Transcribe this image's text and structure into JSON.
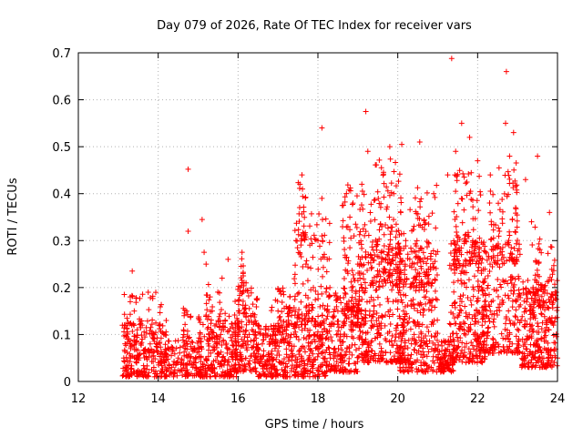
{
  "chart_data": {
    "type": "scatter",
    "title": "Day 079 of 2026, Rate Of TEC Index for receiver vars",
    "xlabel": "GPS time / hours",
    "ylabel": "ROTI / TECUs",
    "xlim": [
      12,
      24
    ],
    "ylim": [
      0,
      0.7
    ],
    "xticks": [
      12,
      14,
      16,
      18,
      20,
      22,
      24
    ],
    "xtick_labels": [
      "12",
      "14",
      "16",
      "18",
      "20",
      "22",
      "24"
    ],
    "yticks": [
      0,
      0.1,
      0.2,
      0.3,
      0.4,
      0.5,
      0.6,
      0.7
    ],
    "ytick_labels": [
      "0",
      "0.1",
      "0.2",
      "0.3",
      "0.4",
      "0.5",
      "0.6",
      "0.7"
    ],
    "grid": true,
    "marker": "plus",
    "color": "#ff0000",
    "points": [
      [
        13.2,
        0.03
      ],
      [
        13.3,
        0.17
      ],
      [
        13.35,
        0.235
      ],
      [
        13.4,
        0.15
      ],
      [
        13.5,
        0.05
      ],
      [
        13.6,
        0.12
      ],
      [
        13.75,
        0.19
      ],
      [
        13.8,
        0.08
      ],
      [
        14.0,
        0.04
      ],
      [
        14.2,
        0.13
      ],
      [
        14.5,
        0.05
      ],
      [
        14.65,
        0.14
      ],
      [
        14.75,
        0.452
      ],
      [
        14.75,
        0.32
      ],
      [
        14.9,
        0.04
      ],
      [
        15.1,
        0.345
      ],
      [
        15.15,
        0.275
      ],
      [
        15.2,
        0.25
      ],
      [
        15.3,
        0.18
      ],
      [
        15.5,
        0.06
      ],
      [
        15.6,
        0.22
      ],
      [
        15.75,
        0.26
      ],
      [
        16.0,
        0.1
      ],
      [
        16.1,
        0.275
      ],
      [
        16.2,
        0.21
      ],
      [
        16.5,
        0.12
      ],
      [
        16.8,
        0.08
      ],
      [
        17.0,
        0.15
      ],
      [
        17.3,
        0.18
      ],
      [
        17.45,
        0.3
      ],
      [
        17.55,
        0.42
      ],
      [
        17.6,
        0.44
      ],
      [
        17.7,
        0.25
      ],
      [
        17.9,
        0.1
      ],
      [
        18.0,
        0.3
      ],
      [
        18.1,
        0.54
      ],
      [
        18.1,
        0.39
      ],
      [
        18.3,
        0.2
      ],
      [
        18.5,
        0.15
      ],
      [
        18.8,
        0.35
      ],
      [
        19.0,
        0.25
      ],
      [
        19.1,
        0.42
      ],
      [
        19.2,
        0.575
      ],
      [
        19.25,
        0.49
      ],
      [
        19.4,
        0.15
      ],
      [
        19.6,
        0.33
      ],
      [
        19.8,
        0.5
      ],
      [
        19.9,
        0.4
      ],
      [
        20.0,
        0.12
      ],
      [
        20.1,
        0.505
      ],
      [
        20.2,
        0.3
      ],
      [
        20.4,
        0.22
      ],
      [
        20.55,
        0.51
      ],
      [
        20.7,
        0.18
      ],
      [
        20.9,
        0.4
      ],
      [
        21.1,
        0.05
      ],
      [
        21.25,
        0.44
      ],
      [
        21.35,
        0.688
      ],
      [
        21.45,
        0.49
      ],
      [
        21.6,
        0.55
      ],
      [
        21.7,
        0.3
      ],
      [
        21.8,
        0.52
      ],
      [
        21.9,
        0.1
      ],
      [
        22.0,
        0.47
      ],
      [
        22.1,
        0.2
      ],
      [
        22.3,
        0.38
      ],
      [
        22.5,
        0.25
      ],
      [
        22.7,
        0.55
      ],
      [
        22.72,
        0.66
      ],
      [
        22.8,
        0.48
      ],
      [
        22.9,
        0.53
      ],
      [
        23.0,
        0.08
      ],
      [
        23.2,
        0.43
      ],
      [
        23.35,
        0.34
      ],
      [
        23.5,
        0.48
      ],
      [
        23.6,
        0.2
      ],
      [
        23.8,
        0.36
      ],
      [
        23.9,
        0.12
      ],
      [
        24.0,
        0.05
      ]
    ],
    "clusters": [
      {
        "x": [
          13.1,
          14.2
        ],
        "ymin": 0.01,
        "ymax": 0.13,
        "n": 220
      },
      {
        "x": [
          13.15,
          14.1
        ],
        "ymin": 0.05,
        "ymax": 0.19,
        "n": 60
      },
      {
        "x": [
          14.2,
          15.1
        ],
        "ymin": 0.01,
        "ymax": 0.09,
        "n": 130
      },
      {
        "x": [
          14.6,
          14.9
        ],
        "ymin": 0.05,
        "ymax": 0.16,
        "n": 30
      },
      {
        "x": [
          15.0,
          16.0
        ],
        "ymin": 0.01,
        "ymax": 0.15,
        "n": 200
      },
      {
        "x": [
          15.2,
          15.6
        ],
        "ymin": 0.08,
        "ymax": 0.21,
        "n": 40
      },
      {
        "x": [
          15.9,
          16.5
        ],
        "ymin": 0.02,
        "ymax": 0.2,
        "n": 160
      },
      {
        "x": [
          16.0,
          16.2
        ],
        "ymin": 0.15,
        "ymax": 0.27,
        "n": 25
      },
      {
        "x": [
          16.5,
          17.2
        ],
        "ymin": 0.01,
        "ymax": 0.12,
        "n": 160
      },
      {
        "x": [
          16.8,
          17.3
        ],
        "ymin": 0.08,
        "ymax": 0.2,
        "n": 50
      },
      {
        "x": [
          17.2,
          18.2
        ],
        "ymin": 0.01,
        "ymax": 0.16,
        "n": 230
      },
      {
        "x": [
          17.4,
          18.3
        ],
        "ymin": 0.12,
        "ymax": 0.36,
        "n": 110
      },
      {
        "x": [
          17.5,
          17.7
        ],
        "ymin": 0.3,
        "ymax": 0.43,
        "n": 20
      },
      {
        "x": [
          18.2,
          19.0
        ],
        "ymin": 0.02,
        "ymax": 0.2,
        "n": 200
      },
      {
        "x": [
          18.6,
          19.2
        ],
        "ymin": 0.12,
        "ymax": 0.42,
        "n": 120
      },
      {
        "x": [
          19.0,
          20.2
        ],
        "ymin": 0.04,
        "ymax": 0.32,
        "n": 300
      },
      {
        "x": [
          19.3,
          20.1
        ],
        "ymin": 0.2,
        "ymax": 0.48,
        "n": 120
      },
      {
        "x": [
          20.0,
          21.0
        ],
        "ymin": 0.02,
        "ymax": 0.3,
        "n": 260
      },
      {
        "x": [
          20.3,
          21.0
        ],
        "ymin": 0.2,
        "ymax": 0.42,
        "n": 80
      },
      {
        "x": [
          21.0,
          21.4
        ],
        "ymin": 0.02,
        "ymax": 0.09,
        "n": 90
      },
      {
        "x": [
          21.3,
          22.2
        ],
        "ymin": 0.04,
        "ymax": 0.3,
        "n": 250
      },
      {
        "x": [
          21.4,
          22.1
        ],
        "ymin": 0.25,
        "ymax": 0.45,
        "n": 80
      },
      {
        "x": [
          22.0,
          23.1
        ],
        "ymin": 0.06,
        "ymax": 0.3,
        "n": 240
      },
      {
        "x": [
          22.3,
          23.0
        ],
        "ymin": 0.25,
        "ymax": 0.47,
        "n": 90
      },
      {
        "x": [
          23.1,
          24.0
        ],
        "ymin": 0.03,
        "ymax": 0.22,
        "n": 250
      },
      {
        "x": [
          23.3,
          24.0
        ],
        "ymin": 0.15,
        "ymax": 0.33,
        "n": 70
      }
    ]
  }
}
